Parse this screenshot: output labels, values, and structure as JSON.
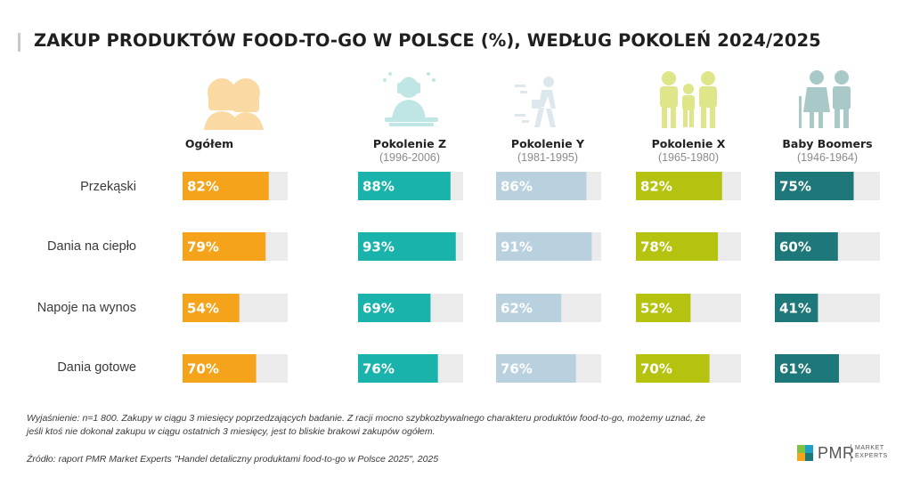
{
  "title": "ZAKUP PRODUKTÓW FOOD-TO-GO W POLSCE (%), WEDŁUG POKOLEŃ 2024/2025",
  "chart_data": {
    "type": "bar",
    "orientation": "horizontal",
    "layout": "small-multiples",
    "categories": [
      "Przekąski",
      "Dania na ciepło",
      "Napoje na wynos",
      "Dania gotowe"
    ],
    "value_suffix": "%",
    "xlim": [
      0,
      100
    ],
    "series": [
      {
        "name": "Ogółem",
        "subtitle": "",
        "icon": "family-group-icon",
        "color": "#f5a31a",
        "values": [
          82,
          79,
          54,
          70
        ]
      },
      {
        "name": "Pokolenie Z",
        "subtitle": "(1996-2006)",
        "icon": "gamer-headset-icon",
        "color": "#19b3ab",
        "values": [
          88,
          93,
          69,
          76
        ]
      },
      {
        "name": "Pokolenie Y",
        "subtitle": "(1981-1995)",
        "icon": "walking-person-icon",
        "color": "#b9d0de",
        "values": [
          86,
          91,
          62,
          76
        ]
      },
      {
        "name": "Pokolenie X",
        "subtitle": "(1965-1980)",
        "icon": "family-figures-icon",
        "color": "#b5c20f",
        "values": [
          82,
          78,
          52,
          70
        ]
      },
      {
        "name": "Baby Boomers",
        "subtitle": "(1946-1964)",
        "icon": "elderly-couple-icon",
        "color": "#1e7779",
        "values": [
          75,
          60,
          41,
          61
        ]
      }
    ],
    "track_color": "#ebebeb"
  },
  "footer": {
    "explanation": "Wyjaśnienie: n=1 800. Zakupy w ciągu 3 miesięcy poprzedzających badanie. Z racji mocno szybkozbywalnego charakteru produktów food-to-go, możemy uznać, że jeśli ktoś nie dokonał zakupu w ciągu ostatnich 3 miesięcy, jest to bliskie brakowi zakupów ogółem.",
    "source": "Źródło: raport PMR Market Experts \"Handel detaliczny produktami food-to-go w Polsce 2025\", 2025"
  },
  "logo": {
    "name": "PMR",
    "sub_line1": "MARKET",
    "sub_line2": "EXPERTS"
  }
}
